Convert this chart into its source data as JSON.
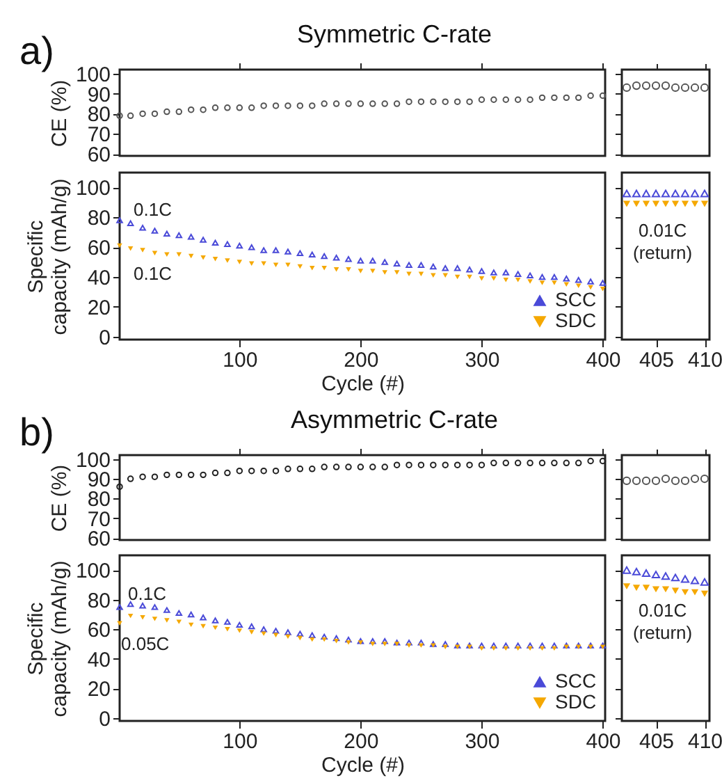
{
  "chart_data": [
    {
      "type": "scatter",
      "title": "Symmetric C-rate",
      "annotations": [
        "a)"
      ],
      "ylabel": "CE (%)",
      "x": [
        1,
        10,
        20,
        30,
        40,
        50,
        60,
        70,
        80,
        90,
        100,
        110,
        120,
        130,
        140,
        150,
        160,
        170,
        180,
        190,
        200,
        210,
        220,
        230,
        240,
        250,
        260,
        270,
        280,
        290,
        300,
        310,
        320,
        330,
        340,
        350,
        360,
        370,
        380,
        390,
        400
      ],
      "xlim": [
        1,
        402
      ],
      "xticks": [
        100,
        200,
        300,
        400
      ],
      "ylim": [
        59,
        102
      ],
      "yticks": [
        60,
        70,
        80,
        90,
        100
      ],
      "tick_labels": "y",
      "marker": "circle",
      "series": [
        {
          "color": "#555555",
          "values": [
            79,
            79,
            80,
            80,
            81,
            81,
            82,
            82,
            83,
            83,
            83,
            83,
            84,
            84,
            84,
            84,
            84,
            85,
            85,
            85,
            85,
            85,
            85,
            85,
            86,
            86,
            86,
            86,
            86,
            86,
            87,
            87,
            87,
            87,
            87,
            88,
            88,
            88,
            88,
            89,
            89
          ]
        }
      ]
    },
    {
      "type": "scatter",
      "x": [
        402,
        403,
        404,
        405,
        406,
        407,
        408,
        409,
        410
      ],
      "xlim": [
        401.5,
        410.5
      ],
      "xticks": [
        405,
        410
      ],
      "ylim": [
        59,
        102
      ],
      "yticks": [
        60,
        70,
        80,
        90,
        100
      ],
      "tick_labels": false,
      "marker": "circle",
      "series": [
        {
          "color": "#555555",
          "values": [
            93,
            94,
            94,
            94,
            94,
            93,
            93,
            93,
            93
          ]
        }
      ]
    },
    {
      "type": "scatter",
      "xlabel": "Cycle (#)",
      "ylabel": "Specific\ncapacity (mAh/g)",
      "x": [
        1,
        10,
        20,
        30,
        40,
        50,
        60,
        70,
        80,
        90,
        100,
        110,
        120,
        130,
        140,
        150,
        160,
        170,
        180,
        190,
        200,
        210,
        220,
        230,
        240,
        250,
        260,
        270,
        280,
        290,
        300,
        310,
        320,
        330,
        340,
        350,
        360,
        370,
        380,
        390,
        400
      ],
      "xlim": [
        1,
        402
      ],
      "xticks": [
        100,
        200,
        300,
        400
      ],
      "ylim": [
        -2,
        110
      ],
      "yticks": [
        0,
        20,
        40,
        60,
        80,
        100
      ],
      "marker": "triangle",
      "legend": "bottom right",
      "annotations": [
        "0.1C",
        "0.1C"
      ],
      "series": [
        {
          "name": "SCC",
          "color": "#4a4ad8",
          "values": [
            78,
            76,
            73,
            71,
            69,
            68,
            67,
            65,
            63,
            62,
            61,
            60,
            58,
            58,
            57,
            56,
            55,
            54,
            53,
            52,
            51,
            51,
            50,
            49,
            48,
            48,
            47,
            46,
            46,
            45,
            44,
            43,
            43,
            42,
            41,
            40,
            40,
            39,
            38,
            37,
            36
          ]
        },
        {
          "name": "SDC",
          "color": "#f5a800",
          "values": [
            61,
            59,
            58,
            56,
            55,
            55,
            54,
            53,
            52,
            51,
            50,
            49,
            49,
            48,
            48,
            47,
            46,
            46,
            45,
            45,
            44,
            44,
            43,
            43,
            42,
            42,
            41,
            41,
            40,
            40,
            39,
            39,
            38,
            38,
            37,
            36,
            36,
            35,
            34,
            33,
            32
          ]
        }
      ]
    },
    {
      "type": "scatter",
      "x": [
        402,
        403,
        404,
        405,
        406,
        407,
        408,
        409,
        410
      ],
      "xlim": [
        401.5,
        410.5
      ],
      "xticks": [
        405,
        410
      ],
      "ylim": [
        -2,
        110
      ],
      "yticks": [
        0,
        20,
        40,
        60,
        80,
        100
      ],
      "tick_labels": "x",
      "marker": "triangle",
      "annotations": [
        "0.01C\n(return)"
      ],
      "series": [
        {
          "color": "#4a4ad8",
          "values": [
            96,
            96,
            96,
            96,
            96,
            96,
            96,
            96,
            96
          ]
        },
        {
          "color": "#f5a800",
          "values": [
            89,
            89,
            89,
            89,
            89,
            89,
            89,
            89,
            89
          ]
        }
      ]
    },
    {
      "type": "scatter",
      "title": "Asymmetric C-rate",
      "annotations": [
        "b)"
      ],
      "ylabel": "CE (%)",
      "x": [
        1,
        10,
        20,
        30,
        40,
        50,
        60,
        70,
        80,
        90,
        100,
        110,
        120,
        130,
        140,
        150,
        160,
        170,
        180,
        190,
        200,
        210,
        220,
        230,
        240,
        250,
        260,
        270,
        280,
        290,
        300,
        310,
        320,
        330,
        340,
        350,
        360,
        370,
        380,
        390,
        400
      ],
      "xlim": [
        1,
        402
      ],
      "xticks": [
        100,
        200,
        300,
        400
      ],
      "ylim": [
        59,
        102
      ],
      "yticks": [
        60,
        70,
        80,
        90,
        100
      ],
      "tick_labels": "y",
      "marker": "circle",
      "series": [
        {
          "color": "#222222",
          "values": [
            86,
            90,
            91,
            91,
            92,
            92,
            92,
            92,
            93,
            93,
            94,
            94,
            94,
            94,
            95,
            95,
            95,
            96,
            96,
            96,
            96,
            96,
            96,
            97,
            97,
            97,
            97,
            97,
            97,
            97,
            97,
            98,
            98,
            98,
            98,
            98,
            98,
            98,
            98,
            99,
            99
          ]
        }
      ]
    },
    {
      "type": "scatter",
      "x": [
        402,
        403,
        404,
        405,
        406,
        407,
        408,
        409,
        410
      ],
      "xlim": [
        401.5,
        410.5
      ],
      "xticks": [
        405,
        410
      ],
      "ylim": [
        59,
        102
      ],
      "yticks": [
        60,
        70,
        80,
        90,
        100
      ],
      "tick_labels": false,
      "marker": "circle",
      "series": [
        {
          "color": "#555555",
          "values": [
            89,
            89,
            89,
            89,
            90,
            89,
            89,
            90,
            90
          ]
        }
      ]
    },
    {
      "type": "scatter",
      "xlabel": "Cycle (#)",
      "ylabel": "Specific\ncapacity (mAh/g)",
      "x": [
        1,
        10,
        20,
        30,
        40,
        50,
        60,
        70,
        80,
        90,
        100,
        110,
        120,
        130,
        140,
        150,
        160,
        170,
        180,
        190,
        200,
        210,
        220,
        230,
        240,
        250,
        260,
        270,
        280,
        290,
        300,
        310,
        320,
        330,
        340,
        350,
        360,
        370,
        380,
        390,
        400
      ],
      "xlim": [
        1,
        402
      ],
      "xticks": [
        100,
        200,
        300,
        400
      ],
      "ylim": [
        -2,
        110
      ],
      "yticks": [
        0,
        20,
        40,
        60,
        80,
        100
      ],
      "marker": "triangle",
      "legend": "bottom right",
      "annotations": [
        "0.1C",
        "0.05C"
      ],
      "series": [
        {
          "name": "SCC",
          "color": "#4a4ad8",
          "values": [
            75,
            77,
            76,
            75,
            73,
            71,
            70,
            68,
            66,
            65,
            63,
            62,
            60,
            59,
            58,
            57,
            56,
            55,
            54,
            53,
            52,
            52,
            52,
            51,
            51,
            51,
            50,
            50,
            49,
            49,
            49,
            49,
            49,
            49,
            49,
            49,
            49,
            49,
            49,
            49,
            49
          ]
        },
        {
          "name": "SDC",
          "color": "#f5a800",
          "values": [
            64,
            69,
            68,
            67,
            66,
            65,
            63,
            62,
            61,
            60,
            59,
            58,
            57,
            56,
            55,
            54,
            53,
            53,
            52,
            51,
            51,
            50,
            50,
            50,
            49,
            49,
            49,
            48,
            48,
            48,
            47,
            47,
            47,
            47,
            47,
            47,
            47,
            48,
            48,
            48,
            48
          ]
        }
      ]
    },
    {
      "type": "scatter",
      "x": [
        402,
        403,
        404,
        405,
        406,
        407,
        408,
        409,
        410
      ],
      "xlim": [
        401.5,
        410.5
      ],
      "xticks": [
        405,
        410
      ],
      "ylim": [
        -2,
        110
      ],
      "yticks": [
        0,
        20,
        40,
        60,
        80,
        100
      ],
      "tick_labels": "x",
      "marker": "triangle",
      "annotations": [
        "0.01C\n(return)"
      ],
      "series": [
        {
          "color": "#4a4ad8",
          "values": [
            100,
            99,
            98,
            97,
            96,
            95,
            94,
            93,
            92
          ]
        },
        {
          "color": "#f5a800",
          "values": [
            89,
            88,
            88,
            87,
            87,
            86,
            85,
            85,
            84
          ]
        }
      ]
    }
  ]
}
